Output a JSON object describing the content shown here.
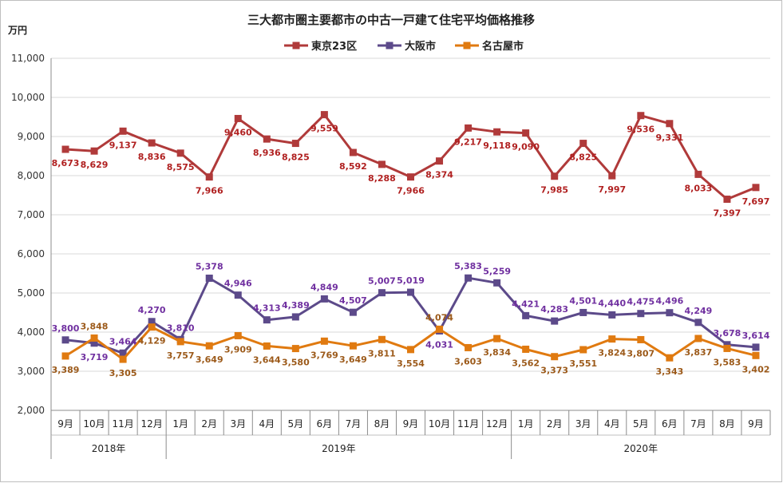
{
  "chart_data": {
    "type": "line",
    "title": "三大都市圏主要都市の中古一戸建て住宅平均価格推移",
    "ylabel": "万円",
    "ylim": [
      2000,
      11000
    ],
    "yticks": [
      "2,000",
      "3,000",
      "4,000",
      "5,000",
      "6,000",
      "7,000",
      "8,000",
      "9,000",
      "10,000",
      "11,000"
    ],
    "categories": [
      "9月",
      "10月",
      "11月",
      "12月",
      "1月",
      "2月",
      "3月",
      "4月",
      "5月",
      "6月",
      "7月",
      "8月",
      "9月",
      "10月",
      "11月",
      "12月",
      "1月",
      "2月",
      "3月",
      "4月",
      "5月",
      "6月",
      "7月",
      "8月",
      "9月"
    ],
    "years": [
      {
        "label": "2018年",
        "start": 0,
        "end": 3
      },
      {
        "label": "2019年",
        "start": 4,
        "end": 15
      },
      {
        "label": "2020年",
        "start": 16,
        "end": 24
      }
    ],
    "legend_position": "top-center",
    "series": [
      {
        "name": "東京23区",
        "color": "#b03a3a",
        "label_color": "#b02020",
        "marker": "square",
        "values": [
          8673,
          8629,
          9137,
          8836,
          8575,
          7966,
          9460,
          8936,
          8825,
          9559,
          8592,
          8288,
          7966,
          8374,
          9217,
          9118,
          9090,
          7985,
          8825,
          7997,
          9536,
          9331,
          8033,
          7397,
          7697
        ],
        "labels": [
          "8,673",
          "8,629",
          "9,137",
          "8,836",
          "8,575",
          "7,966",
          "9,460",
          "8,936",
          "8,825",
          "9,559",
          "8,592",
          "8,288",
          "7,966",
          "8,374",
          "9,217",
          "9,118",
          "9,090",
          "7,985",
          "8,825",
          "7,997",
          "9,536",
          "9,331",
          "8,033",
          "7,397",
          "7,697"
        ],
        "label_pos": [
          "below",
          "below",
          "below",
          "below",
          "below",
          "below",
          "below",
          "below",
          "below",
          "below",
          "below",
          "below",
          "below",
          "below",
          "below",
          "below",
          "below",
          "below",
          "below",
          "below",
          "below",
          "below",
          "below",
          "below",
          "below"
        ]
      },
      {
        "name": "大阪市",
        "color": "#5c4a8a",
        "label_color": "#7030a0",
        "marker": "square",
        "values": [
          3800,
          3719,
          3464,
          4270,
          3810,
          5378,
          4946,
          4313,
          4389,
          4849,
          4507,
          5007,
          5019,
          4031,
          5383,
          5259,
          4421,
          4283,
          4501,
          4440,
          4475,
          4496,
          4249,
          3678,
          3614
        ],
        "labels": [
          "3,800",
          "3,719",
          "3,464",
          "4,270",
          "3,810",
          "5,378",
          "4,946",
          "4,313",
          "4,389",
          "4,849",
          "4,507",
          "5,007",
          "5,019",
          "4,031",
          "5,383",
          "5,259",
          "4,421",
          "4,283",
          "4,501",
          "4,440",
          "4,475",
          "4,496",
          "4,249",
          "3,678",
          "3,614"
        ],
        "label_pos": [
          "above",
          "below",
          "above",
          "above",
          "above",
          "above",
          "above",
          "above",
          "above",
          "above",
          "above",
          "above",
          "above",
          "below",
          "above",
          "above",
          "above",
          "above",
          "above",
          "above",
          "above",
          "above",
          "above",
          "above",
          "above"
        ]
      },
      {
        "name": "名古屋市",
        "color": "#e07a10",
        "label_color": "#9c5a1a",
        "marker": "square",
        "values": [
          3389,
          3848,
          3305,
          4129,
          3757,
          3649,
          3909,
          3644,
          3580,
          3769,
          3649,
          3811,
          3554,
          4074,
          3603,
          3834,
          3562,
          3373,
          3551,
          3824,
          3807,
          3343,
          3837,
          3583,
          3402
        ],
        "labels": [
          "3,389",
          "3,848",
          "3,305",
          "4,129",
          "3,757",
          "3,649",
          "3,909",
          "3,644",
          "3,580",
          "3,769",
          "3,649",
          "3,811",
          "3,554",
          "4,074",
          "3,603",
          "3,834",
          "3,562",
          "3,373",
          "3,551",
          "3,824",
          "3,807",
          "3,343",
          "3,837",
          "3,583",
          "3,402"
        ],
        "label_pos": [
          "below",
          "above",
          "below",
          "below",
          "below",
          "below",
          "below",
          "below",
          "below",
          "below",
          "below",
          "below",
          "below",
          "above",
          "below",
          "below",
          "below",
          "below",
          "below",
          "below",
          "below",
          "below",
          "below",
          "below",
          "below"
        ]
      }
    ]
  }
}
